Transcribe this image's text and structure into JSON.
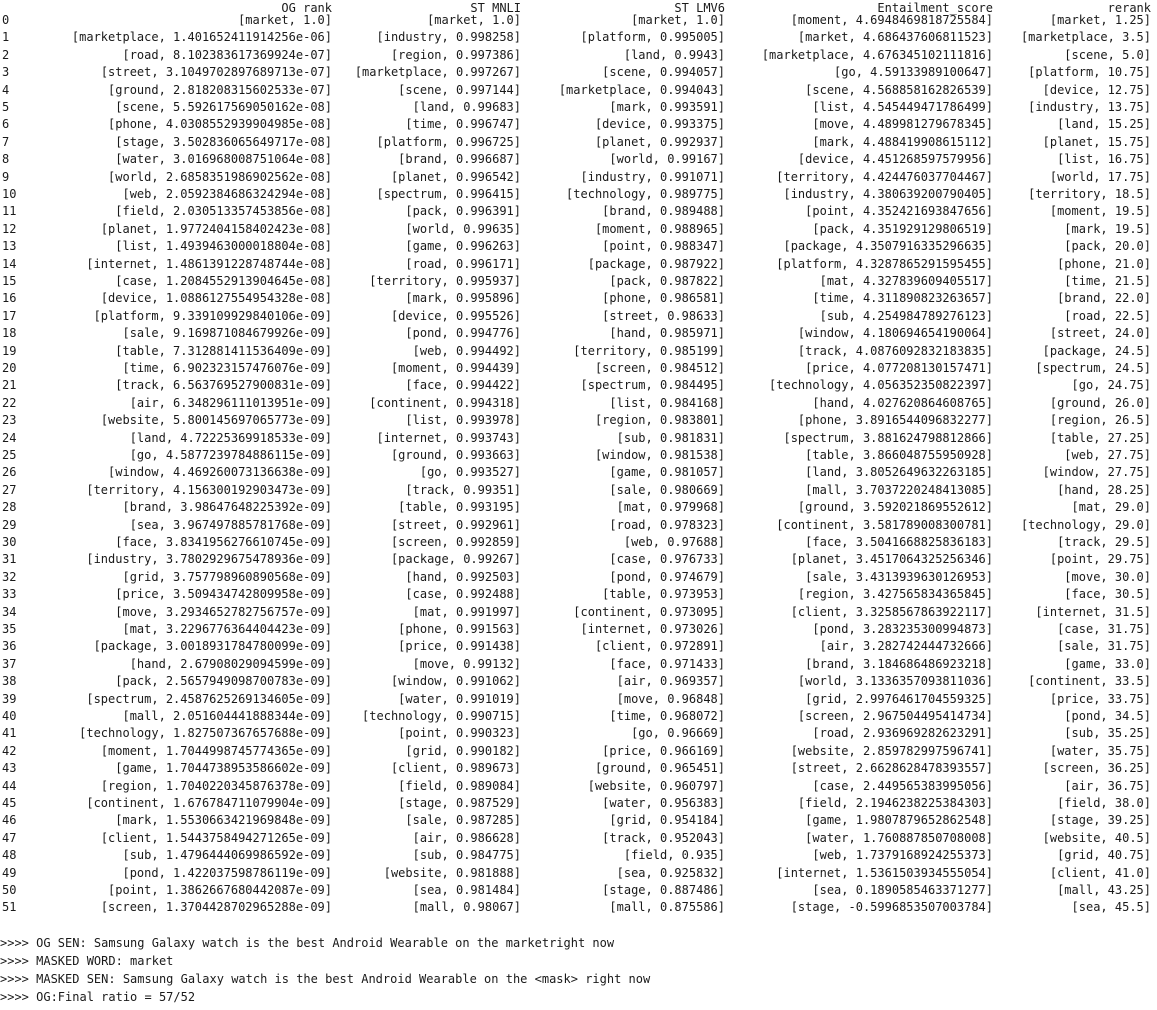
{
  "table": {
    "columns": [
      "OG rank",
      "ST MNLI",
      "ST LMV6",
      "Entailment_score",
      "rerank"
    ],
    "rows": [
      [
        "0",
        "[market, 1.0]",
        "[market, 1.0]",
        "[market, 1.0]",
        "[moment, 4.6948469818725584]",
        "[market, 1.25]"
      ],
      [
        "1",
        "[marketplace, 1.401652411914256e-06]",
        "[industry, 0.998258]",
        "[platform, 0.995005]",
        "[market, 4.686437606811523]",
        "[marketplace, 3.5]"
      ],
      [
        "2",
        "[road, 8.102383617369924e-07]",
        "[region, 0.997386]",
        "[land, 0.9943]",
        "[marketplace, 4.676345102111816]",
        "[scene, 5.0]"
      ],
      [
        "3",
        "[street, 3.1049702897689713e-07]",
        "[marketplace, 0.997267]",
        "[scene, 0.994057]",
        "[go, 4.59133989100647]",
        "[platform, 10.75]"
      ],
      [
        "4",
        "[ground, 2.818208315602533e-07]",
        "[scene, 0.997144]",
        "[marketplace, 0.994043]",
        "[scene, 4.568858162826539]",
        "[device, 12.75]"
      ],
      [
        "5",
        "[scene, 5.592617569050162e-08]",
        "[land, 0.99683]",
        "[mark, 0.993591]",
        "[list, 4.545449471786499]",
        "[industry, 13.75]"
      ],
      [
        "6",
        "[phone, 4.0308552939904985e-08]",
        "[time, 0.996747]",
        "[device, 0.993375]",
        "[move, 4.489981279678345]",
        "[land, 15.25]"
      ],
      [
        "7",
        "[stage, 3.502836065649717e-08]",
        "[platform, 0.996725]",
        "[planet, 0.992937]",
        "[mark, 4.488419908615112]",
        "[planet, 15.75]"
      ],
      [
        "8",
        "[water, 3.016968008751064e-08]",
        "[brand, 0.996687]",
        "[world, 0.99167]",
        "[device, 4.451268597579956]",
        "[list, 16.75]"
      ],
      [
        "9",
        "[world, 2.6858351986902562e-08]",
        "[planet, 0.996542]",
        "[industry, 0.991071]",
        "[territory, 4.424476037704467]",
        "[world, 17.75]"
      ],
      [
        "10",
        "[web, 2.0592384686324294e-08]",
        "[spectrum, 0.996415]",
        "[technology, 0.989775]",
        "[industry, 4.380639200790405]",
        "[territory, 18.5]"
      ],
      [
        "11",
        "[field, 2.030513357453856e-08]",
        "[pack, 0.996391]",
        "[brand, 0.989488]",
        "[point, 4.352421693847656]",
        "[moment, 19.5]"
      ],
      [
        "12",
        "[planet, 1.9772404158402423e-08]",
        "[world, 0.99635]",
        "[moment, 0.988965]",
        "[pack, 4.351929129806519]",
        "[mark, 19.5]"
      ],
      [
        "13",
        "[list, 1.4939463000018804e-08]",
        "[game, 0.996263]",
        "[point, 0.988347]",
        "[package, 4.3507916335296635]",
        "[pack, 20.0]"
      ],
      [
        "14",
        "[internet, 1.4861391228748744e-08]",
        "[road, 0.996171]",
        "[package, 0.987922]",
        "[platform, 4.3287865291595455]",
        "[phone, 21.0]"
      ],
      [
        "15",
        "[case, 1.2084552913904645e-08]",
        "[territory, 0.995937]",
        "[pack, 0.987822]",
        "[mat, 4.327839609405517]",
        "[time, 21.5]"
      ],
      [
        "16",
        "[device, 1.0886127554954328e-08]",
        "[mark, 0.995896]",
        "[phone, 0.986581]",
        "[time, 4.311890823263657]",
        "[brand, 22.0]"
      ],
      [
        "17",
        "[platform, 9.339109929840106e-09]",
        "[device, 0.995526]",
        "[street, 0.98633]",
        "[sub, 4.254984789276123]",
        "[road, 22.5]"
      ],
      [
        "18",
        "[sale, 9.169871084679926e-09]",
        "[pond, 0.994776]",
        "[hand, 0.985971]",
        "[window, 4.180694654190064]",
        "[street, 24.0]"
      ],
      [
        "19",
        "[table, 7.312881411536409e-09]",
        "[web, 0.994492]",
        "[territory, 0.985199]",
        "[track, 4.0876092832183835]",
        "[package, 24.5]"
      ],
      [
        "20",
        "[time, 6.902323157476076e-09]",
        "[moment, 0.994439]",
        "[screen, 0.984512]",
        "[price, 4.077208130157471]",
        "[spectrum, 24.5]"
      ],
      [
        "21",
        "[track, 6.563769527900831e-09]",
        "[face, 0.994422]",
        "[spectrum, 0.984495]",
        "[technology, 4.056352350822397]",
        "[go, 24.75]"
      ],
      [
        "22",
        "[air, 6.348296111013951e-09]",
        "[continent, 0.994318]",
        "[list, 0.984168]",
        "[hand, 4.027620864608765]",
        "[ground, 26.0]"
      ],
      [
        "23",
        "[website, 5.800145697065773e-09]",
        "[list, 0.993978]",
        "[region, 0.983801]",
        "[phone, 3.8916544096832277]",
        "[region, 26.5]"
      ],
      [
        "24",
        "[land, 4.72225369918533e-09]",
        "[internet, 0.993743]",
        "[sub, 0.981831]",
        "[spectrum, 3.881624798812866]",
        "[table, 27.25]"
      ],
      [
        "25",
        "[go, 4.5877239784886115e-09]",
        "[ground, 0.993663]",
        "[window, 0.981538]",
        "[table, 3.866048755950928]",
        "[web, 27.75]"
      ],
      [
        "26",
        "[window, 4.469260073136638e-09]",
        "[go, 0.993527]",
        "[game, 0.981057]",
        "[land, 3.8052649632263185]",
        "[window, 27.75]"
      ],
      [
        "27",
        "[territory, 4.156300192903473e-09]",
        "[track, 0.99351]",
        "[sale, 0.980669]",
        "[mall, 3.7037220248413085]",
        "[hand, 28.25]"
      ],
      [
        "28",
        "[brand, 3.98647648225392e-09]",
        "[table, 0.993195]",
        "[mat, 0.979968]",
        "[ground, 3.592021869552612]",
        "[mat, 29.0]"
      ],
      [
        "29",
        "[sea, 3.967497885781768e-09]",
        "[street, 0.992961]",
        "[road, 0.978323]",
        "[continent, 3.581789008300781]",
        "[technology, 29.0]"
      ],
      [
        "30",
        "[face, 3.8341956276610745e-09]",
        "[screen, 0.992859]",
        "[web, 0.97688]",
        "[face, 3.5041668825836183]",
        "[track, 29.5]"
      ],
      [
        "31",
        "[industry, 3.7802929675478936e-09]",
        "[package, 0.99267]",
        "[case, 0.976733]",
        "[planet, 3.4517064325256346]",
        "[point, 29.75]"
      ],
      [
        "32",
        "[grid, 3.757798960890568e-09]",
        "[hand, 0.992503]",
        "[pond, 0.974679]",
        "[sale, 3.4313939630126953]",
        "[move, 30.0]"
      ],
      [
        "33",
        "[price, 3.509434742809958e-09]",
        "[case, 0.992488]",
        "[table, 0.973953]",
        "[region, 3.427565834365845]",
        "[face, 30.5]"
      ],
      [
        "34",
        "[move, 3.2934652782756757e-09]",
        "[mat, 0.991997]",
        "[continent, 0.973095]",
        "[client, 3.3258567863922117]",
        "[internet, 31.5]"
      ],
      [
        "35",
        "[mat, 3.2296776364404423e-09]",
        "[phone, 0.991563]",
        "[internet, 0.973026]",
        "[pond, 3.283235300994873]",
        "[case, 31.75]"
      ],
      [
        "36",
        "[package, 3.0018931784780099e-09]",
        "[price, 0.991438]",
        "[client, 0.972891]",
        "[air, 3.282742444732666]",
        "[sale, 31.75]"
      ],
      [
        "37",
        "[hand, 2.67908029094599e-09]",
        "[move, 0.99132]",
        "[face, 0.971433]",
        "[brand, 3.184686486923218]",
        "[game, 33.0]"
      ],
      [
        "38",
        "[pack, 2.5657949098700783e-09]",
        "[window, 0.991062]",
        "[air, 0.969357]",
        "[world, 3.1336357093811036]",
        "[continent, 33.5]"
      ],
      [
        "39",
        "[spectrum, 2.4587625269134605e-09]",
        "[water, 0.991019]",
        "[move, 0.96848]",
        "[grid, 2.9976461704559325]",
        "[price, 33.75]"
      ],
      [
        "40",
        "[mall, 2.051604441888344e-09]",
        "[technology, 0.990715]",
        "[time, 0.968072]",
        "[screen, 2.967504495414734]",
        "[pond, 34.5]"
      ],
      [
        "41",
        "[technology, 1.827507367657688e-09]",
        "[point, 0.990323]",
        "[go, 0.96669]",
        "[road, 2.936969282623291]",
        "[sub, 35.25]"
      ],
      [
        "42",
        "[moment, 1.7044998745774365e-09]",
        "[grid, 0.990182]",
        "[price, 0.966169]",
        "[website, 2.859782997596741]",
        "[water, 35.75]"
      ],
      [
        "43",
        "[game, 1.7044738953586602e-09]",
        "[client, 0.989673]",
        "[ground, 0.965451]",
        "[street, 2.6628628478393557]",
        "[screen, 36.25]"
      ],
      [
        "44",
        "[region, 1.7040220345876378e-09]",
        "[field, 0.989084]",
        "[website, 0.960797]",
        "[case, 2.449565383995056]",
        "[air, 36.75]"
      ],
      [
        "45",
        "[continent, 1.676784711079904e-09]",
        "[stage, 0.987529]",
        "[water, 0.956383]",
        "[field, 2.1946238225384303]",
        "[field, 38.0]"
      ],
      [
        "46",
        "[mark, 1.5530663421969848e-09]",
        "[sale, 0.987285]",
        "[grid, 0.954184]",
        "[game, 1.9807879652862548]",
        "[stage, 39.25]"
      ],
      [
        "47",
        "[client, 1.5443758494271265e-09]",
        "[air, 0.986628]",
        "[track, 0.952043]",
        "[water, 1.760887850708008]",
        "[website, 40.5]"
      ],
      [
        "48",
        "[sub, 1.4796444069986592e-09]",
        "[sub, 0.984775]",
        "[field, 0.935]",
        "[web, 1.7379168924255373]",
        "[grid, 40.75]"
      ],
      [
        "49",
        "[pond, 1.422037598786119e-09]",
        "[website, 0.981888]",
        "[sea, 0.925832]",
        "[internet, 1.5361503934555054]",
        "[client, 41.0]"
      ],
      [
        "50",
        "[point, 1.3862667680442087e-09]",
        "[sea, 0.981484]",
        "[stage, 0.887486]",
        "[sea, 0.1890585463371277]",
        "[mall, 43.25]"
      ],
      [
        "51",
        "[screen, 1.3704428702965288e-09]",
        "[mall, 0.98067]",
        "[mall, 0.875586]",
        "[stage, -0.5996853507003784]",
        "[sea, 45.5]"
      ]
    ]
  },
  "log": [
    ">>>> OG SEN: Samsung Galaxy watch is the best Android Wearable on the marketright now",
    ">>>> MASKED WORD: market",
    ">>>> MASKED SEN: Samsung Galaxy watch is the best Android Wearable on the <mask> right now",
    ">>>> OG:Final ratio = 57/52"
  ]
}
